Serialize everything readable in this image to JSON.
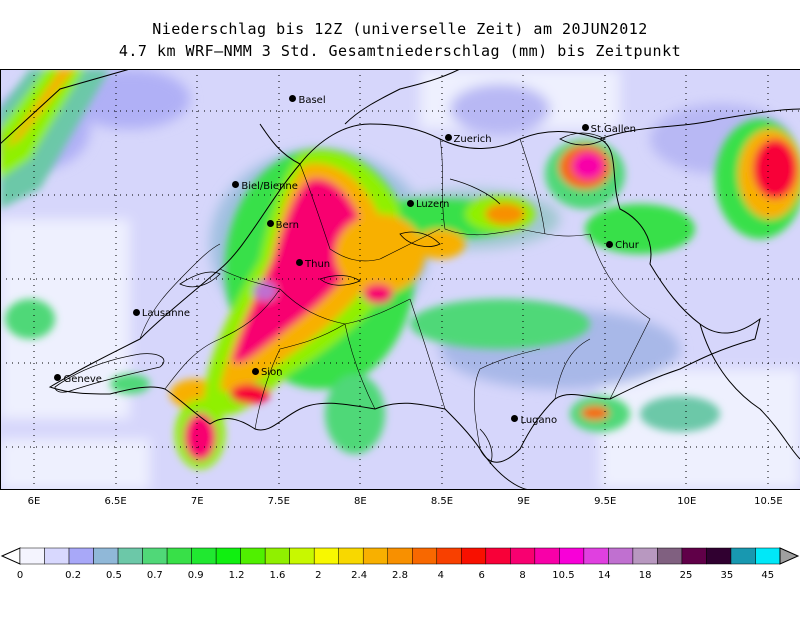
{
  "title_line1": "Niederschlag bis 12Z (universelle Zeit) am 20JUN2012",
  "title_line2": "4.7 km WRF–NMM 3 Std. Gesamtniederschlag (mm) bis Zeitpunkt",
  "x_axis": {
    "range": [
      5.9,
      10.85
    ],
    "ticks": [
      "6E",
      "6.5E",
      "7E",
      "7.5E",
      "8E",
      "8.5E",
      "9E",
      "9.5E",
      "10E",
      "10.5E"
    ],
    "tick_values": [
      6,
      6.5,
      7,
      7.5,
      8,
      8.5,
      9,
      9.5,
      10,
      10.5
    ]
  },
  "cities": [
    {
      "name": "Basel",
      "lon": 7.59,
      "lat": 47.56
    },
    {
      "name": "Zuerich",
      "lon": 8.54,
      "lat": 47.37
    },
    {
      "name": "St.Gallen",
      "lon": 9.38,
      "lat": 47.42
    },
    {
      "name": "Biel/Bienne",
      "lon": 7.24,
      "lat": 47.14
    },
    {
      "name": "Luzern",
      "lon": 8.31,
      "lat": 47.05
    },
    {
      "name": "Bern",
      "lon": 7.45,
      "lat": 46.95
    },
    {
      "name": "Thun",
      "lon": 7.63,
      "lat": 46.76
    },
    {
      "name": "Chur",
      "lon": 9.53,
      "lat": 46.85
    },
    {
      "name": "Lausanne",
      "lon": 6.63,
      "lat": 46.52
    },
    {
      "name": "Geneve",
      "lon": 6.15,
      "lat": 46.2
    },
    {
      "name": "Sion",
      "lon": 7.36,
      "lat": 46.23
    },
    {
      "name": "Lugano",
      "lon": 8.95,
      "lat": 46.0
    }
  ],
  "colorbar": {
    "labels": [
      "0",
      "0.2",
      "0.5",
      "0.7",
      "0.9",
      "1.2",
      "1.6",
      "2",
      "2.4",
      "2.8",
      "4",
      "6",
      "8",
      "10.5",
      "14",
      "18",
      "25",
      "35",
      "45"
    ],
    "colors": [
      "#f4f4fe",
      "#d8d8fe",
      "#a8a8f8",
      "#90b8d8",
      "#6cc8a8",
      "#50d878",
      "#38e048",
      "#20e830",
      "#10f010",
      "#50f000",
      "#90f000",
      "#c8f800",
      "#f8f800",
      "#f8d800",
      "#f8b000",
      "#f89000",
      "#f86800",
      "#f84000",
      "#f81000",
      "#f80038",
      "#f80070",
      "#f800a8",
      "#f800d8",
      "#e040e0",
      "#c070d0",
      "#b898c0",
      "#806080",
      "#600048",
      "#300030",
      "#1898b0",
      "#00e8f8"
    ]
  }
}
